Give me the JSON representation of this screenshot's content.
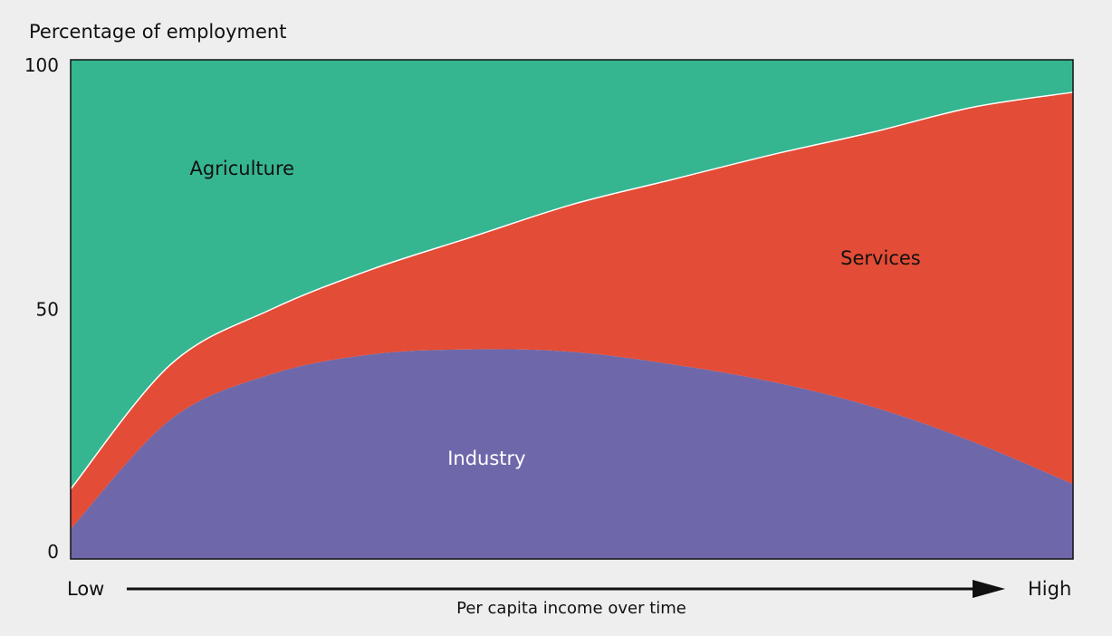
{
  "chart_data": {
    "type": "area",
    "title": "",
    "ylabel": "Percentage of employment",
    "xlabel": "Per capita income over time",
    "x_start_label": "Low",
    "x_end_label": "High",
    "ylim": [
      0,
      100
    ],
    "yticks": [
      0,
      50,
      100
    ],
    "ytick_labels": [
      "0",
      "50",
      "100"
    ],
    "grid": false,
    "stacking": "stacked",
    "x": [
      0,
      0.1,
      0.2,
      0.3,
      0.4,
      0.5,
      0.6,
      0.7,
      0.8,
      0.9,
      1.0
    ],
    "series": [
      {
        "name": "Industry",
        "color": "#6e68aa",
        "label_color": "#ffffff",
        "values": [
          6,
          28,
          37,
          41,
          42,
          41.5,
          39,
          35.5,
          30.5,
          23.5,
          15
        ]
      },
      {
        "name": "Services",
        "color": "#e34c36",
        "label_color": "#111111",
        "values": [
          8,
          11,
          13,
          17,
          22.5,
          29.5,
          37,
          45.5,
          55,
          67,
          78.5
        ]
      },
      {
        "name": "Agriculture",
        "color": "#35b690",
        "label_color": "#111111",
        "values": [
          86,
          61,
          50,
          42,
          35.5,
          29,
          24,
          19,
          14.5,
          9.5,
          6.5
        ]
      }
    ]
  }
}
